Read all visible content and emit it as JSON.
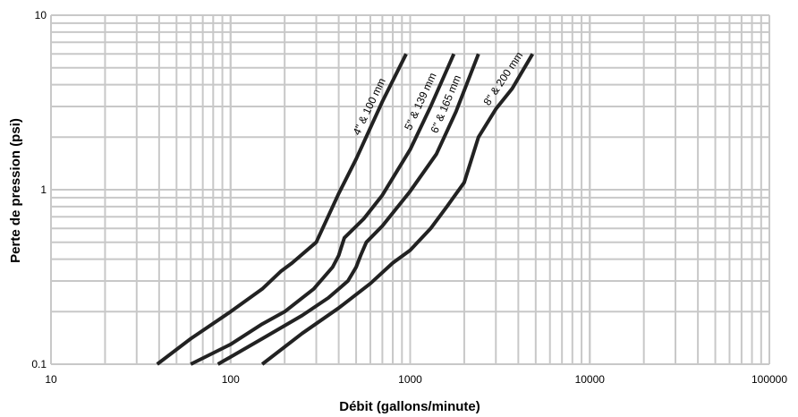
{
  "chart_data": {
    "type": "line",
    "title": "",
    "xlabel": "Débit (gallons/minute)",
    "ylabel": "Perte de pression (psi)",
    "xscale": "log",
    "yscale": "log",
    "xlim": [
      10,
      100000
    ],
    "ylim": [
      0.1,
      10
    ],
    "x_ticks": [
      "10",
      "100",
      "1000",
      "10000",
      "100000"
    ],
    "y_ticks": [
      "0.1",
      "1",
      "10"
    ],
    "grid": true,
    "legend": "none",
    "line_color": "#222222",
    "grid_color": "#c8c8c8",
    "series": [
      {
        "name": "4\" & 100 mm",
        "x": [
          39,
          60,
          100,
          150,
          190,
          220,
          300,
          400,
          500,
          700,
          950
        ],
        "y": [
          0.1,
          0.14,
          0.2,
          0.27,
          0.34,
          0.38,
          0.5,
          0.95,
          1.5,
          3.2,
          6
        ]
      },
      {
        "name": "5\" & 139 mm",
        "x": [
          60,
          100,
          150,
          200,
          290,
          370,
          400,
          430,
          550,
          700,
          1000,
          1300,
          1750
        ],
        "y": [
          0.1,
          0.13,
          0.17,
          0.2,
          0.27,
          0.36,
          0.42,
          0.53,
          0.68,
          0.93,
          1.7,
          3.0,
          6
        ]
      },
      {
        "name": "6\" & 165 mm",
        "x": [
          85,
          150,
          250,
          350,
          450,
          500,
          530,
          570,
          700,
          1000,
          1400,
          1800,
          2400
        ],
        "y": [
          0.1,
          0.14,
          0.19,
          0.24,
          0.3,
          0.36,
          0.42,
          0.5,
          0.62,
          0.98,
          1.6,
          2.8,
          6
        ]
      },
      {
        "name": "8\" & 200 mm",
        "x": [
          150,
          250,
          400,
          600,
          800,
          1000,
          1300,
          1600,
          2000,
          2400,
          3000,
          3700,
          4800
        ],
        "y": [
          0.1,
          0.15,
          0.21,
          0.29,
          0.38,
          0.45,
          0.6,
          0.8,
          1.1,
          2.0,
          2.9,
          3.8,
          6
        ]
      }
    ]
  }
}
